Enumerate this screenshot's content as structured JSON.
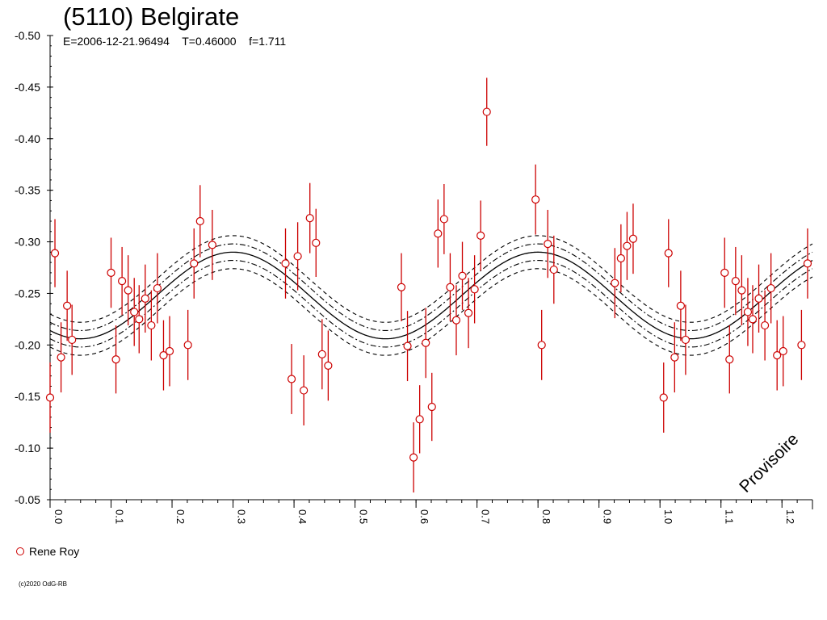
{
  "header": {
    "title": "(5110) Belgirate",
    "subtitle": "E=2006-12-21.96494    T=0.46000    f=1.711"
  },
  "legend": {
    "observer": "Rene Roy"
  },
  "copyright": "(c)2020 OdG-RB",
  "watermark": "Provisoire",
  "colors": {
    "points": "#cc0000",
    "curves": "#000000",
    "axis": "#000000"
  },
  "chart_data": {
    "type": "scatter",
    "title": "(5110) Belgirate",
    "xlabel": "",
    "ylabel": "",
    "xlim": [
      0.0,
      1.25
    ],
    "ylim": [
      -0.5,
      -0.05
    ],
    "x_ticks": [
      "0.0",
      "0.1",
      "0.2",
      "0.3",
      "0.4",
      "0.5",
      "0.6",
      "0.7",
      "0.8",
      "0.9",
      "1.0",
      "1.1",
      "1.2"
    ],
    "y_ticks": [
      "-0.50",
      "-0.45",
      "-0.40",
      "-0.35",
      "-0.30",
      "-0.25",
      "-0.20",
      "-0.15",
      "-0.10",
      "-0.05"
    ],
    "grid": false,
    "legend_position": "bottom-left",
    "series": [
      {
        "name": "Rene Roy",
        "points": [
          {
            "x": 0.0,
            "y": -0.149,
            "err": 0.034
          },
          {
            "x": 0.008,
            "y": -0.289,
            "err": 0.033
          },
          {
            "x": 0.018,
            "y": -0.188,
            "err": 0.034
          },
          {
            "x": 0.028,
            "y": -0.238,
            "err": 0.034
          },
          {
            "x": 0.036,
            "y": -0.205,
            "err": 0.034
          },
          {
            "x": 0.1,
            "y": -0.27,
            "err": 0.034
          },
          {
            "x": 0.108,
            "y": -0.186,
            "err": 0.033
          },
          {
            "x": 0.118,
            "y": -0.262,
            "err": 0.033
          },
          {
            "x": 0.128,
            "y": -0.253,
            "err": 0.034
          },
          {
            "x": 0.138,
            "y": -0.232,
            "err": 0.033
          },
          {
            "x": 0.146,
            "y": -0.225,
            "err": 0.033
          },
          {
            "x": 0.156,
            "y": -0.245,
            "err": 0.033
          },
          {
            "x": 0.166,
            "y": -0.219,
            "err": 0.034
          },
          {
            "x": 0.176,
            "y": -0.255,
            "err": 0.034
          },
          {
            "x": 0.186,
            "y": -0.19,
            "err": 0.034
          },
          {
            "x": 0.196,
            "y": -0.194,
            "err": 0.034
          },
          {
            "x": 0.226,
            "y": -0.2,
            "err": 0.034
          },
          {
            "x": 0.236,
            "y": -0.279,
            "err": 0.034
          },
          {
            "x": 0.246,
            "y": -0.32,
            "err": 0.035
          },
          {
            "x": 0.266,
            "y": -0.297,
            "err": 0.034
          },
          {
            "x": 0.386,
            "y": -0.279,
            "err": 0.034
          },
          {
            "x": 0.396,
            "y": -0.167,
            "err": 0.034
          },
          {
            "x": 0.406,
            "y": -0.286,
            "err": 0.033
          },
          {
            "x": 0.416,
            "y": -0.156,
            "err": 0.034
          },
          {
            "x": 0.426,
            "y": -0.323,
            "err": 0.034
          },
          {
            "x": 0.436,
            "y": -0.299,
            "err": 0.033
          },
          {
            "x": 0.446,
            "y": -0.191,
            "err": 0.034
          },
          {
            "x": 0.456,
            "y": -0.18,
            "err": 0.034
          },
          {
            "x": 0.576,
            "y": -0.256,
            "err": 0.033
          },
          {
            "x": 0.586,
            "y": -0.199,
            "err": 0.034
          },
          {
            "x": 0.596,
            "y": -0.091,
            "err": 0.034
          },
          {
            "x": 0.606,
            "y": -0.128,
            "err": 0.033
          },
          {
            "x": 0.616,
            "y": -0.202,
            "err": 0.034
          },
          {
            "x": 0.626,
            "y": -0.14,
            "err": 0.033
          },
          {
            "x": 0.636,
            "y": -0.308,
            "err": 0.033
          },
          {
            "x": 0.646,
            "y": -0.322,
            "err": 0.034
          },
          {
            "x": 0.656,
            "y": -0.256,
            "err": 0.033
          },
          {
            "x": 0.666,
            "y": -0.224,
            "err": 0.034
          },
          {
            "x": 0.676,
            "y": -0.267,
            "err": 0.033
          },
          {
            "x": 0.686,
            "y": -0.231,
            "err": 0.034
          },
          {
            "x": 0.696,
            "y": -0.254,
            "err": 0.033
          },
          {
            "x": 0.706,
            "y": -0.306,
            "err": 0.034
          },
          {
            "x": 0.716,
            "y": -0.426,
            "err": 0.033
          },
          {
            "x": 0.796,
            "y": -0.341,
            "err": 0.034
          },
          {
            "x": 0.806,
            "y": -0.2,
            "err": 0.034
          },
          {
            "x": 0.816,
            "y": -0.298,
            "err": 0.033
          },
          {
            "x": 0.826,
            "y": -0.273,
            "err": 0.033
          },
          {
            "x": 0.926,
            "y": -0.26,
            "err": 0.034
          },
          {
            "x": 0.936,
            "y": -0.284,
            "err": 0.033
          },
          {
            "x": 0.946,
            "y": -0.296,
            "err": 0.033
          },
          {
            "x": 0.956,
            "y": -0.303,
            "err": 0.034
          },
          {
            "x": 1.006,
            "y": -0.149,
            "err": 0.034
          },
          {
            "x": 1.014,
            "y": -0.289,
            "err": 0.033
          },
          {
            "x": 1.024,
            "y": -0.188,
            "err": 0.034
          },
          {
            "x": 1.034,
            "y": -0.238,
            "err": 0.034
          },
          {
            "x": 1.042,
            "y": -0.205,
            "err": 0.034
          },
          {
            "x": 1.106,
            "y": -0.27,
            "err": 0.034
          },
          {
            "x": 1.114,
            "y": -0.186,
            "err": 0.033
          },
          {
            "x": 1.124,
            "y": -0.262,
            "err": 0.033
          },
          {
            "x": 1.134,
            "y": -0.253,
            "err": 0.034
          },
          {
            "x": 1.144,
            "y": -0.232,
            "err": 0.033
          },
          {
            "x": 1.152,
            "y": -0.225,
            "err": 0.033
          },
          {
            "x": 1.162,
            "y": -0.245,
            "err": 0.033
          },
          {
            "x": 1.172,
            "y": -0.219,
            "err": 0.034
          },
          {
            "x": 1.182,
            "y": -0.255,
            "err": 0.034
          },
          {
            "x": 1.192,
            "y": -0.19,
            "err": 0.034
          },
          {
            "x": 1.202,
            "y": -0.194,
            "err": 0.034
          },
          {
            "x": 1.232,
            "y": -0.2,
            "err": 0.034
          },
          {
            "x": 1.242,
            "y": -0.279,
            "err": 0.034
          }
        ]
      }
    ],
    "fit": {
      "type": "sinusoid",
      "center": -0.248,
      "amplitude": 0.042,
      "peak_phase": 0.3,
      "period_phase": 0.5,
      "envelopes": [
        {
          "offset": 0.008,
          "style": "dashdot"
        },
        {
          "offset": 0.016,
          "style": "dashed"
        }
      ]
    }
  }
}
